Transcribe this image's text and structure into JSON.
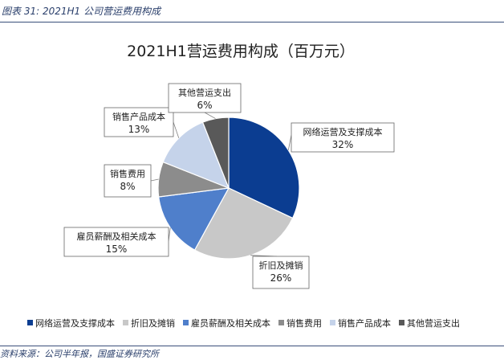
{
  "header": {
    "caption": "图表 31:  2021H1 公司营运费用构成"
  },
  "footer": {
    "source": "资料来源：公司半年报，国盛证券研究所"
  },
  "colors": {
    "网络运营及支撑成本": "#0b3d91",
    "折旧及摊销": "#c8c8c8",
    "雇员薪酬及相关成本": "#4f7fcb",
    "销售费用": "#8c8c8c",
    "销售产品成本": "#c5d3ea",
    "其他营运支出": "#595959"
  },
  "chart_data": {
    "type": "pie",
    "title": "2021H1营运费用构成（百万元）",
    "legend_position": "bottom",
    "slices": [
      {
        "name": "网络运营及支撑成本",
        "value": 32,
        "label": "32%"
      },
      {
        "name": "折旧及摊销",
        "value": 26,
        "label": "26%"
      },
      {
        "name": "雇员薪酬及相关成本",
        "value": 15,
        "label": "15%"
      },
      {
        "name": "销售费用",
        "value": 8,
        "label": "8%"
      },
      {
        "name": "销售产品成本",
        "value": 13,
        "label": "13%"
      },
      {
        "name": "其他营运支出",
        "value": 6,
        "label": "6%"
      }
    ]
  }
}
